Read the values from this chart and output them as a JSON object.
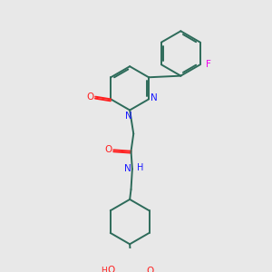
{
  "bg_color": "#e8e8e8",
  "bond_color": "#2d6b5a",
  "n_color": "#1a1aff",
  "o_color": "#ff2020",
  "f_color": "#ee00ee",
  "line_width": 1.4,
  "dbl_sep": 0.07,
  "fig_w": 3.0,
  "fig_h": 3.0,
  "dpi": 100,
  "xlim": [
    0,
    10
  ],
  "ylim": [
    0,
    10
  ]
}
